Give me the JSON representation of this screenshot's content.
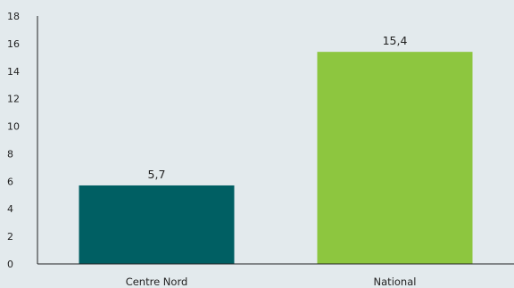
{
  "chart_data": {
    "type": "bar",
    "categories": [
      "Centre Nord",
      "National"
    ],
    "values": [
      5.7,
      15.4
    ],
    "value_labels": [
      "5,7",
      "15,4"
    ],
    "colors": [
      "#005f63",
      "#8dc63f"
    ],
    "ylim": [
      0,
      18
    ],
    "y_ticks": [
      "0",
      "2",
      "4",
      "6",
      "8",
      "10",
      "12",
      "14",
      "16",
      "18"
    ],
    "grid": false,
    "legend": "none"
  }
}
